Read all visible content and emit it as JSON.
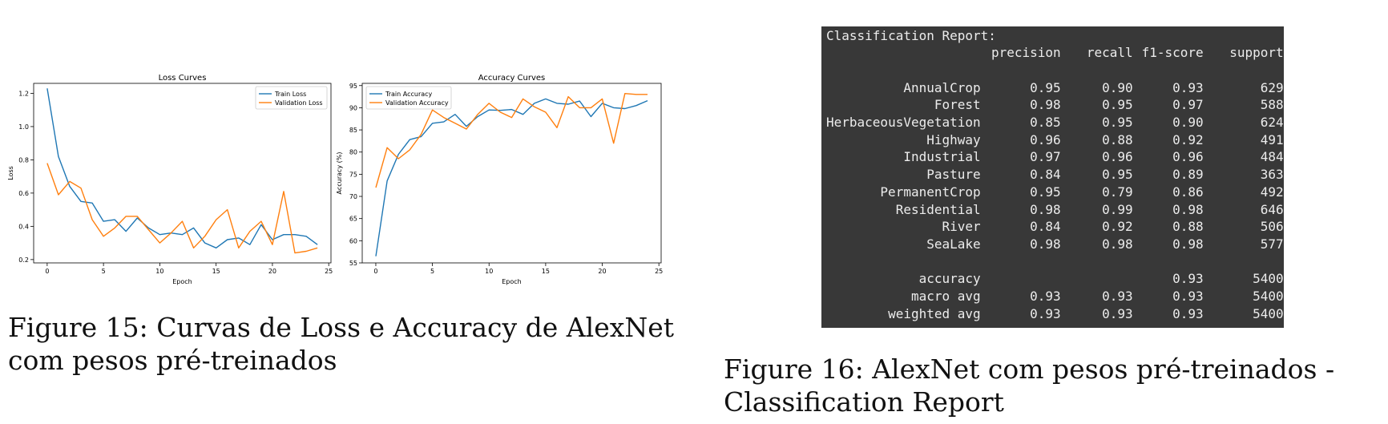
{
  "figure15": {
    "caption": "Figure 15: Curvas de Loss e Accuracy de AlexNet com pesos pré-treinados"
  },
  "figure16": {
    "caption": "Figure 16: AlexNet com pesos pré-treinados - Classification Report"
  },
  "report": {
    "title": "Classification Report:",
    "headers": [
      "precision",
      "recall",
      "f1-score",
      "support"
    ],
    "rows": [
      {
        "label": "AnnualCrop",
        "precision": "0.95",
        "recall": "0.90",
        "f1": "0.93",
        "support": "629"
      },
      {
        "label": "Forest",
        "precision": "0.98",
        "recall": "0.95",
        "f1": "0.97",
        "support": "588"
      },
      {
        "label": "HerbaceousVegetation",
        "precision": "0.85",
        "recall": "0.95",
        "f1": "0.90",
        "support": "624"
      },
      {
        "label": "Highway",
        "precision": "0.96",
        "recall": "0.88",
        "f1": "0.92",
        "support": "491"
      },
      {
        "label": "Industrial",
        "precision": "0.97",
        "recall": "0.96",
        "f1": "0.96",
        "support": "484"
      },
      {
        "label": "Pasture",
        "precision": "0.84",
        "recall": "0.95",
        "f1": "0.89",
        "support": "363"
      },
      {
        "label": "PermanentCrop",
        "precision": "0.95",
        "recall": "0.79",
        "f1": "0.86",
        "support": "492"
      },
      {
        "label": "Residential",
        "precision": "0.98",
        "recall": "0.99",
        "f1": "0.98",
        "support": "646"
      },
      {
        "label": "River",
        "precision": "0.84",
        "recall": "0.92",
        "f1": "0.88",
        "support": "506"
      },
      {
        "label": "SeaLake",
        "precision": "0.98",
        "recall": "0.98",
        "f1": "0.98",
        "support": "577"
      }
    ],
    "summary": [
      {
        "label": "accuracy",
        "precision": "",
        "recall": "",
        "f1": "0.93",
        "support": "5400"
      },
      {
        "label": "macro avg",
        "precision": "0.93",
        "recall": "0.93",
        "f1": "0.93",
        "support": "5400"
      },
      {
        "label": "weighted avg",
        "precision": "0.93",
        "recall": "0.93",
        "f1": "0.93",
        "support": "5400"
      }
    ]
  },
  "chart_data": [
    {
      "type": "line",
      "title": "Loss Curves",
      "xlabel": "Epoch",
      "ylabel": "Loss",
      "xlim": [
        -1.2,
        25.2
      ],
      "ylim": [
        0.18,
        1.26
      ],
      "xticks": [
        0,
        5,
        10,
        15,
        20,
        25
      ],
      "yticks": [
        0.2,
        0.4,
        0.6,
        0.8,
        1.0,
        1.2
      ],
      "ytick_labels": [
        "0.2",
        "0.4",
        "0.6",
        "0.8",
        "1.0",
        "1.2"
      ],
      "legend_position": "top-right",
      "x": [
        0,
        1,
        2,
        3,
        4,
        5,
        6,
        7,
        8,
        9,
        10,
        11,
        12,
        13,
        14,
        15,
        16,
        17,
        18,
        19,
        20,
        21,
        22,
        23,
        24
      ],
      "series": [
        {
          "name": "Train Loss",
          "color": "#1f77b4",
          "values": [
            1.23,
            0.82,
            0.64,
            0.55,
            0.54,
            0.43,
            0.44,
            0.37,
            0.45,
            0.39,
            0.35,
            0.36,
            0.35,
            0.39,
            0.3,
            0.27,
            0.32,
            0.33,
            0.29,
            0.41,
            0.32,
            0.35,
            0.35,
            0.34,
            0.29
          ]
        },
        {
          "name": "Validation Loss",
          "color": "#ff7f0e",
          "values": [
            0.78,
            0.59,
            0.67,
            0.63,
            0.44,
            0.34,
            0.39,
            0.46,
            0.46,
            0.38,
            0.3,
            0.36,
            0.43,
            0.27,
            0.34,
            0.44,
            0.5,
            0.27,
            0.37,
            0.43,
            0.29,
            0.61,
            0.24,
            0.25,
            0.27
          ]
        }
      ]
    },
    {
      "type": "line",
      "title": "Accuracy Curves",
      "xlabel": "Epoch",
      "ylabel": "Accuracy (%)",
      "xlim": [
        -1.2,
        25.2
      ],
      "ylim": [
        55,
        95.5
      ],
      "xticks": [
        0,
        5,
        10,
        15,
        20,
        25
      ],
      "yticks": [
        55,
        60,
        65,
        70,
        75,
        80,
        85,
        90,
        95
      ],
      "ytick_labels": [
        "55",
        "60",
        "65",
        "70",
        "75",
        "80",
        "85",
        "90",
        "95"
      ],
      "legend_position": "top-left",
      "x": [
        0,
        1,
        2,
        3,
        4,
        5,
        6,
        7,
        8,
        9,
        10,
        11,
        12,
        13,
        14,
        15,
        16,
        17,
        18,
        19,
        20,
        21,
        22,
        23,
        24
      ],
      "series": [
        {
          "name": "Train Accuracy",
          "color": "#1f77b4",
          "values": [
            56.5,
            73.5,
            79.5,
            82.8,
            83.5,
            86.5,
            86.8,
            88.5,
            85.8,
            88.0,
            89.5,
            89.4,
            89.6,
            88.5,
            91.0,
            92.0,
            91.0,
            90.8,
            91.5,
            88.0,
            91.0,
            90.0,
            89.8,
            90.5,
            91.6
          ]
        },
        {
          "name": "Validation Accuracy",
          "color": "#ff7f0e",
          "values": [
            72.0,
            81.0,
            78.5,
            80.5,
            84.0,
            89.5,
            87.8,
            86.5,
            85.2,
            88.5,
            91.0,
            89.0,
            87.8,
            92.0,
            90.2,
            89.0,
            85.5,
            92.5,
            90.0,
            90.0,
            92.0,
            82.0,
            93.2,
            93.0,
            93.0
          ]
        }
      ]
    }
  ]
}
